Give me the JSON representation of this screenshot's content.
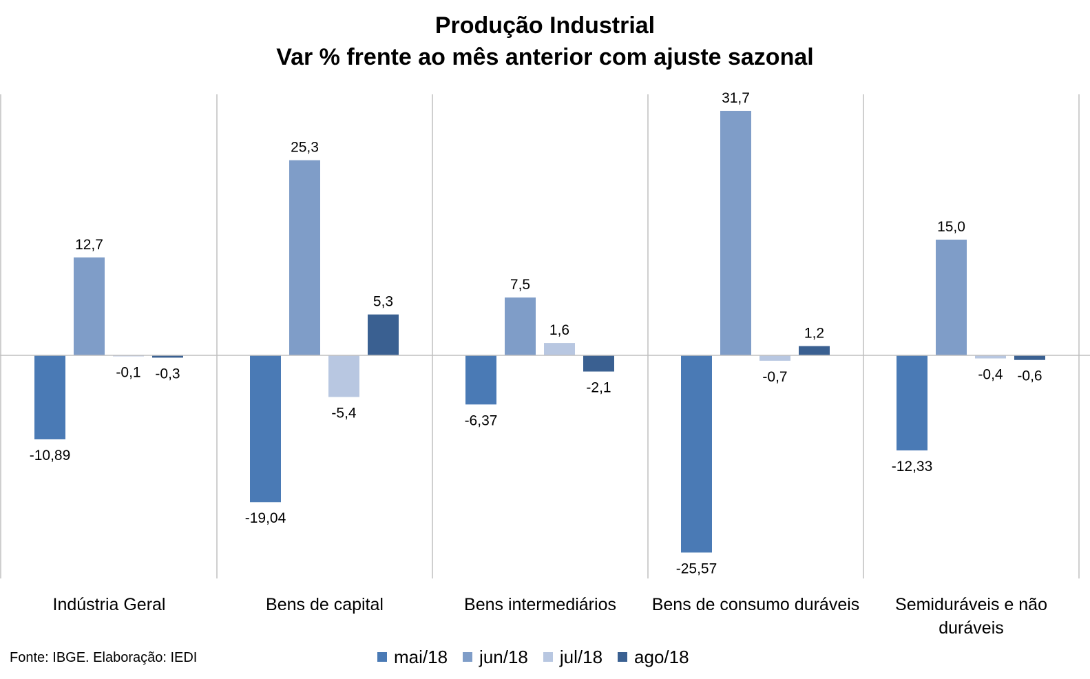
{
  "title_line1": "Produção Industrial",
  "title_line2": "Var % frente ao mês anterior com ajuste sazonal",
  "source": "Fonte: IBGE. Elaboração: IEDI",
  "chart_data": {
    "type": "bar",
    "title": "Produção Industrial\nVar % frente ao mês anterior com ajuste sazonal",
    "categories": [
      "Indústria Geral",
      "Bens de capital",
      "Bens intermediários",
      "Bens de consumo duráveis",
      "Semiduráveis e não duráveis"
    ],
    "series": [
      {
        "name": "mai/18",
        "color": "#4a7ab5",
        "values": [
          -10.89,
          -19.04,
          -6.37,
          -25.57,
          -12.33
        ],
        "labels": [
          "-10,89",
          "-19,04",
          "-6,37",
          "-25,57",
          "-12,33"
        ]
      },
      {
        "name": "jun/18",
        "color": "#7f9dc8",
        "values": [
          12.7,
          25.3,
          7.5,
          31.7,
          15.0
        ],
        "labels": [
          "12,7",
          "25,3",
          "7,5",
          "31,7",
          "15,0"
        ]
      },
      {
        "name": "jul/18",
        "color": "#b8c7e1",
        "values": [
          -0.1,
          -5.4,
          1.6,
          -0.7,
          -0.4
        ],
        "labels": [
          "-0,1",
          "-5,4",
          "1,6",
          "-0,7",
          "-0,4"
        ]
      },
      {
        "name": "ago/18",
        "color": "#3a6091",
        "values": [
          -0.3,
          5.3,
          -2.1,
          1.2,
          -0.6
        ],
        "labels": [
          "-0,3",
          "5,3",
          "-2,1",
          "1,2",
          "-0,6"
        ]
      }
    ],
    "grid": false,
    "legend_position": "bottom",
    "xlabel": "",
    "ylabel": ""
  }
}
